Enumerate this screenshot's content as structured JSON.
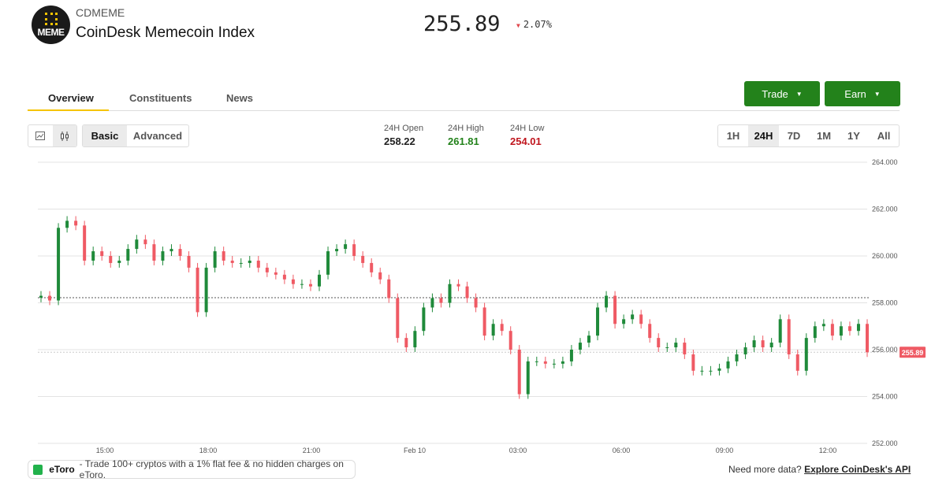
{
  "header": {
    "ticker": "CDMEME",
    "name": "CoinDesk Memecoin Index",
    "logo_text": "MEME",
    "price": "255.89",
    "change": "2.07%",
    "change_direction": "down",
    "down_color": "#e0474c"
  },
  "tabs": [
    {
      "label": "Overview",
      "active": true
    },
    {
      "label": "Constituents"
    },
    {
      "label": "News"
    }
  ],
  "actions": {
    "trade": "Trade",
    "earn": "Earn",
    "button_color": "#23821b"
  },
  "chart_type_toggle": [
    {
      "icon": "line-chart-icon"
    },
    {
      "icon": "candlestick-icon",
      "active": true
    }
  ],
  "mode": [
    {
      "label": "Basic",
      "active": true
    },
    {
      "label": "Advanced"
    }
  ],
  "stats": {
    "open_label": "24H Open",
    "open": "258.22",
    "high_label": "24H High",
    "high": "261.81",
    "low_label": "24H Low",
    "low": "254.01"
  },
  "ranges": [
    {
      "label": "1H"
    },
    {
      "label": "24H",
      "active": true
    },
    {
      "label": "7D"
    },
    {
      "label": "1M"
    },
    {
      "label": "1Y"
    },
    {
      "label": "All"
    }
  ],
  "chart_data": {
    "type": "candlestick",
    "ylim": [
      252,
      264
    ],
    "yticks": [
      "264.000",
      "262.000",
      "260.000",
      "258.000",
      "256.000",
      "254.000",
      "252.000"
    ],
    "xticks": [
      "15:00",
      "18:00",
      "21:00",
      "Feb 10",
      "03:00",
      "06:00",
      "09:00",
      "12:00"
    ],
    "grid": true,
    "reference_open": 258.22,
    "last_price": 255.89,
    "last_label": "255.89",
    "up_color": "#1f8a3a",
    "down_color": "#ef5a64",
    "close": [
      258.3,
      258.1,
      261.2,
      261.5,
      261.3,
      259.8,
      260.2,
      260.0,
      259.7,
      259.8,
      260.3,
      260.7,
      260.5,
      259.8,
      260.2,
      260.3,
      260.0,
      259.5,
      257.6,
      259.5,
      260.2,
      259.8,
      259.7,
      259.7,
      259.8,
      259.5,
      259.3,
      259.2,
      259.0,
      258.8,
      258.8,
      258.7,
      259.2,
      260.2,
      260.3,
      260.5,
      260.0,
      259.7,
      259.3,
      259.0,
      258.2,
      256.5,
      256.1,
      256.8,
      257.8,
      258.2,
      258.0,
      258.8,
      258.7,
      258.2,
      257.8,
      256.6,
      257.1,
      256.8,
      256.0,
      254.1,
      255.5,
      255.5,
      255.4,
      255.4,
      255.5,
      256.0,
      256.3,
      256.6,
      257.8,
      258.3,
      257.1,
      257.3,
      257.5,
      257.1,
      256.5,
      256.1,
      256.1,
      256.3,
      255.8,
      255.1,
      255.1,
      255.1,
      255.2,
      255.5,
      255.8,
      256.1,
      256.4,
      256.1,
      256.3,
      257.3,
      255.8,
      255.1,
      256.5,
      257.0,
      257.1,
      256.6,
      257.0,
      256.8,
      257.1,
      255.89
    ]
  },
  "ad": {
    "brand": "eToro",
    "text": "- Trade 100+ cryptos with a 1% flat fee & no hidden charges on eToro."
  },
  "footer": {
    "prompt": "Need more data?",
    "link": "Explore CoinDesk's API"
  }
}
